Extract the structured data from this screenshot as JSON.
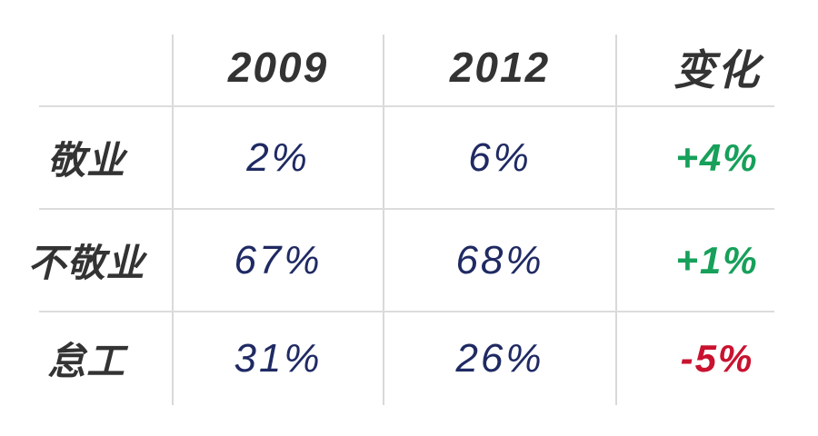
{
  "table": {
    "columns": [
      "",
      "2009",
      "2012",
      "变化"
    ],
    "rows": [
      {
        "label": "敬业",
        "values": [
          "2%",
          "6%"
        ],
        "change": "+4%",
        "trend": "up"
      },
      {
        "label": "不敬业",
        "values": [
          "67%",
          "68%"
        ],
        "change": "+1%",
        "trend": "up"
      },
      {
        "label": "怠工",
        "values": [
          "31%",
          "26%"
        ],
        "change": "-5%",
        "trend": "down"
      }
    ]
  },
  "colors": {
    "header_text": "#333333",
    "value_text": "#1f2a63",
    "positive_change": "#17a05a",
    "negative_change": "#c9122f",
    "gridline": "#dcdcdc",
    "background": "#ffffff"
  },
  "chart_data": {
    "type": "table",
    "title": "",
    "columns": [
      "",
      "2009",
      "2012",
      "变化"
    ],
    "categories": [
      "敬业",
      "不敬业",
      "怠工"
    ],
    "series": [
      {
        "name": "2009",
        "values": [
          2,
          67,
          31
        ]
      },
      {
        "name": "2012",
        "values": [
          6,
          68,
          26
        ]
      },
      {
        "name": "变化",
        "values": [
          4,
          1,
          -5
        ]
      }
    ],
    "layout_hints": {
      "gridlines": "partial light-gray separators, no outer border",
      "value_unit": "percent",
      "positive_changes_green": true,
      "negative_changes_red": true
    }
  }
}
